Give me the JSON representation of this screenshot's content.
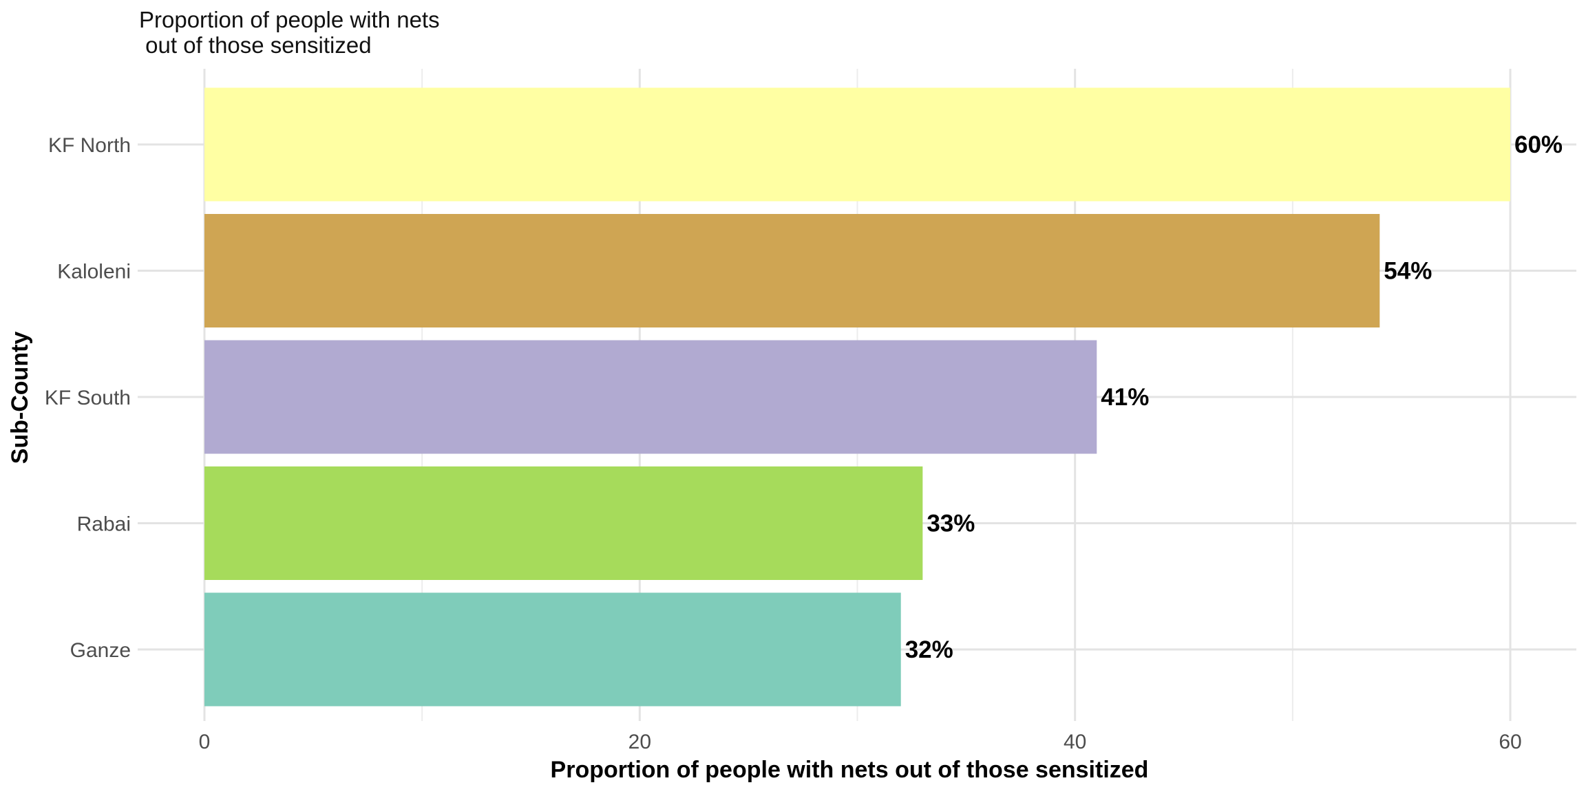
{
  "chart_data": {
    "type": "bar",
    "orientation": "horizontal",
    "title_lines": [
      "Proportion of people with nets",
      " out of those sensitized"
    ],
    "xlabel": "Proportion of people with nets out of those sensitized",
    "ylabel": "Sub-County",
    "xlim": [
      0,
      63
    ],
    "x_ticks": [
      0,
      20,
      40,
      60
    ],
    "grid": true,
    "legend": "none",
    "categories": [
      "KF North",
      "Kaloleni",
      "KF South",
      "Rabai",
      "Ganze"
    ],
    "values": [
      60,
      54,
      41,
      33,
      32
    ],
    "data_labels": [
      "60%",
      "54%",
      "41%",
      "33%",
      "32%"
    ],
    "colors": [
      "#FFFFA3",
      "#CFA553",
      "#B1AAD1",
      "#A6DB5B",
      "#7FCCBA"
    ]
  }
}
